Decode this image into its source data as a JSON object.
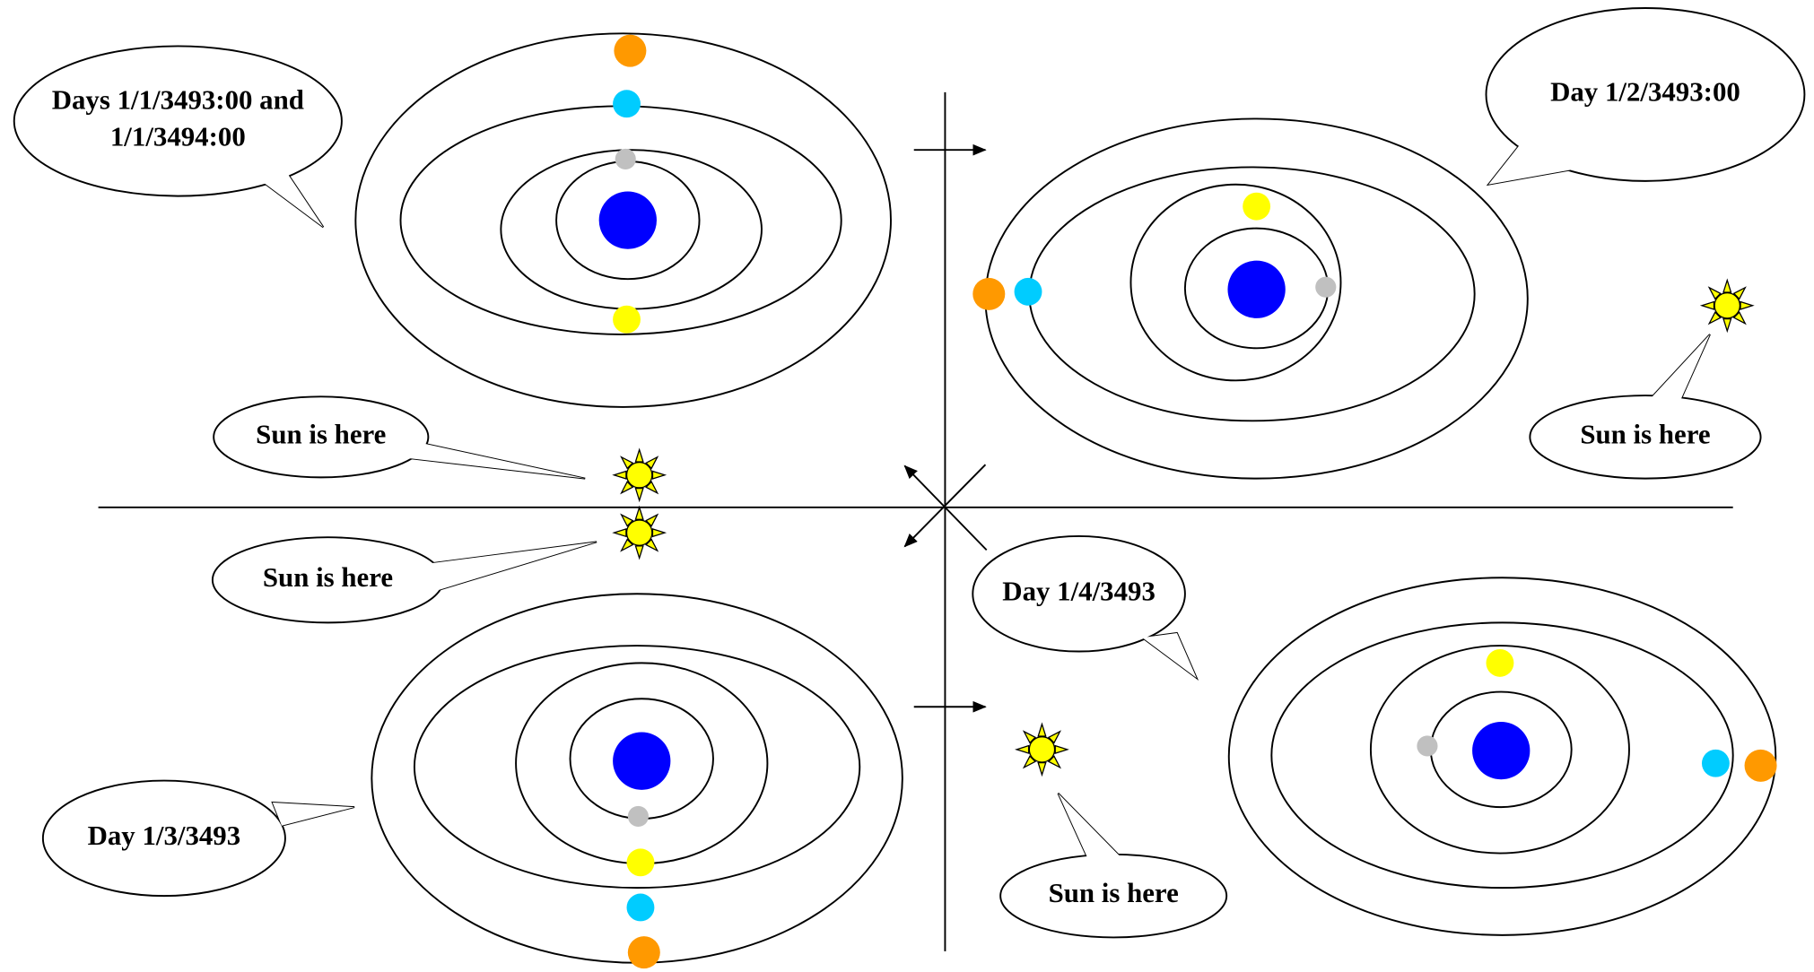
{
  "callouts": [
    {
      "lines": [
        "Days 1/1/3493:00 and",
        "1/1/3494:00"
      ]
    },
    {
      "lines": [
        "Day 1/2/3493:00"
      ]
    },
    {
      "lines": [
        "Sun is here"
      ]
    },
    {
      "lines": [
        "Sun is here"
      ]
    },
    {
      "lines": [
        "Sun is here"
      ]
    },
    {
      "lines": [
        "Day 1/4/3493"
      ]
    },
    {
      "lines": [
        "Day 1/3/3493"
      ]
    },
    {
      "lines": [
        "Sun is here"
      ]
    }
  ]
}
